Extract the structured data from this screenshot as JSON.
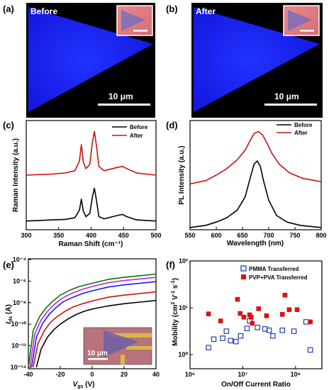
{
  "panels": {
    "a": {
      "letter": "(a)",
      "title": "Before",
      "scalebar": "10 μm"
    },
    "b": {
      "letter": "(b)",
      "title": "After",
      "scalebar": "10 μm"
    },
    "c": {
      "letter": "(c)",
      "xlabel": "Raman Shift (cm⁻¹)",
      "ylabel": "Raman Intensity (a.u.)"
    },
    "d": {
      "letter": "(d)",
      "xlabel": "Wavelength (nm)",
      "ylabel": "PL Intensity (a.u.)"
    },
    "e": {
      "letter": "(e)",
      "inset_scalebar": "10 μm"
    },
    "f": {
      "letter": "(f)",
      "xlabel": "On/Off Current Ratio"
    }
  },
  "colors": {
    "before": "#000000",
    "after": "#cc1111",
    "flake": "#1a24ff",
    "pmma": "#1f3fae",
    "pvp": "#dd1111"
  },
  "chart_data": [
    {
      "id": "c",
      "type": "line",
      "xlabel": "Raman Shift (cm⁻¹)",
      "ylabel": "Raman Intensity (a.u.)",
      "xlim": [
        300,
        500
      ],
      "xticks": [
        "300",
        "350",
        "400",
        "450",
        "500"
      ],
      "legend": "top-right",
      "series": [
        {
          "name": "Before",
          "x": [
            300,
            320,
            340,
            360,
            375,
            382,
            385,
            388,
            392,
            398,
            402,
            405,
            408,
            412,
            420,
            440,
            448,
            455,
            470,
            500
          ],
          "y": [
            0.08,
            0.085,
            0.09,
            0.095,
            0.11,
            0.18,
            0.28,
            0.17,
            0.12,
            0.15,
            0.3,
            0.38,
            0.28,
            0.12,
            0.1,
            0.13,
            0.14,
            0.12,
            0.09,
            0.08
          ]
        },
        {
          "name": "After",
          "x": [
            300,
            320,
            340,
            360,
            375,
            382,
            385,
            388,
            392,
            398,
            402,
            405,
            408,
            412,
            420,
            440,
            448,
            455,
            470,
            500
          ],
          "y": [
            0.5,
            0.505,
            0.51,
            0.52,
            0.54,
            0.63,
            0.78,
            0.62,
            0.56,
            0.6,
            0.8,
            0.9,
            0.78,
            0.58,
            0.54,
            0.57,
            0.58,
            0.56,
            0.52,
            0.5
          ]
        }
      ]
    },
    {
      "id": "d",
      "type": "line",
      "xlabel": "Wavelength (nm)",
      "ylabel": "PL Intensity (a.u.)",
      "xlim": [
        550,
        800
      ],
      "xticks": [
        "550",
        "600",
        "650",
        "700",
        "750",
        "800"
      ],
      "legend": "top-right",
      "series": [
        {
          "name": "Before",
          "x": [
            550,
            580,
            600,
            620,
            640,
            655,
            665,
            672,
            678,
            684,
            690,
            700,
            715,
            735,
            760,
            800
          ],
          "y": [
            0.02,
            0.04,
            0.07,
            0.11,
            0.18,
            0.3,
            0.48,
            0.6,
            0.63,
            0.58,
            0.45,
            0.27,
            0.13,
            0.07,
            0.04,
            0.02
          ]
        },
        {
          "name": "After",
          "x": [
            550,
            580,
            600,
            620,
            640,
            655,
            665,
            672,
            680,
            688,
            696,
            706,
            720,
            740,
            765,
            800
          ],
          "y": [
            0.42,
            0.45,
            0.5,
            0.56,
            0.64,
            0.73,
            0.82,
            0.88,
            0.9,
            0.87,
            0.8,
            0.7,
            0.6,
            0.52,
            0.47,
            0.44
          ]
        }
      ]
    },
    {
      "id": "e",
      "type": "line",
      "xlabel": "Vgs (V)",
      "ylabel": "Ids (A)",
      "xlim": [
        -40,
        40
      ],
      "xticks": [
        "-40",
        "-20",
        "0",
        "20",
        "40"
      ],
      "ylim_log": [
        -14,
        -4
      ],
      "yticks": [
        "10⁻¹⁴",
        "10⁻¹²",
        "10⁻¹⁰",
        "10⁻⁸",
        "10⁻⁶",
        "10⁻⁴"
      ],
      "series": [
        {
          "color": "#000000",
          "x": [
            -35,
            -32,
            -28,
            -24,
            -20,
            -15,
            -10,
            -5,
            0,
            10,
            20,
            30,
            40
          ],
          "log_y": [
            -14,
            -12.3,
            -11.2,
            -10.5,
            -10.0,
            -9.5,
            -9.1,
            -8.8,
            -8.6,
            -8.3,
            -8.1,
            -7.95,
            -7.8
          ]
        },
        {
          "color": "#cc1111",
          "x": [
            -37,
            -34,
            -30,
            -26,
            -22,
            -17,
            -12,
            -6,
            0,
            10,
            20,
            30,
            40
          ],
          "log_y": [
            -14,
            -11.8,
            -10.6,
            -9.8,
            -9.3,
            -8.8,
            -8.4,
            -8.1,
            -7.85,
            -7.5,
            -7.3,
            -7.15,
            -7.0
          ]
        },
        {
          "color": "#1a1aff",
          "x": [
            -38,
            -35,
            -31,
            -27,
            -23,
            -18,
            -12,
            -6,
            0,
            10,
            20,
            30,
            40
          ],
          "log_y": [
            -14,
            -11.2,
            -9.9,
            -9.1,
            -8.5,
            -7.9,
            -7.5,
            -7.15,
            -6.9,
            -6.55,
            -6.35,
            -6.2,
            -6.05
          ]
        },
        {
          "color": "#cc22cc",
          "x": [
            -39,
            -36,
            -32,
            -28,
            -24,
            -19,
            -13,
            -7,
            0,
            10,
            20,
            30,
            40
          ],
          "log_y": [
            -14,
            -10.9,
            -9.6,
            -8.8,
            -8.2,
            -7.6,
            -7.15,
            -6.8,
            -6.5,
            -6.15,
            -5.95,
            -5.8,
            -5.65
          ]
        },
        {
          "color": "#107010",
          "x": [
            -40,
            -37,
            -33,
            -29,
            -25,
            -20,
            -14,
            -8,
            0,
            10,
            20,
            30,
            40
          ],
          "log_y": [
            -14,
            -10.6,
            -9.3,
            -8.5,
            -7.9,
            -7.3,
            -6.85,
            -6.5,
            -6.2,
            -5.85,
            -5.65,
            -5.5,
            -5.35
          ]
        }
      ]
    },
    {
      "id": "f",
      "type": "scatter",
      "xlabel": "On/Off Current Ratio",
      "ylabel": "Mobility (cm² V⁻¹ s⁻¹)",
      "xlim_log": [
        6,
        8.5
      ],
      "ylim_log": [
        -0.3,
        2
      ],
      "xticks": [
        "10⁶",
        "10⁷",
        "10⁸"
      ],
      "yticks": [
        "10⁰",
        "10¹",
        "10²"
      ],
      "legend": "top-right",
      "series": [
        {
          "name": "PMMA Transferred",
          "marker": "open-square",
          "log_x": [
            6.35,
            6.45,
            6.62,
            6.69,
            6.77,
            6.87,
            6.96,
            7.08,
            7.13,
            7.28,
            7.42,
            7.5,
            7.57,
            7.75,
            7.97,
            8.2,
            8.28
          ],
          "log_y": [
            0.15,
            0.33,
            0.35,
            0.5,
            0.3,
            0.28,
            0.4,
            0.56,
            0.72,
            0.58,
            0.55,
            0.52,
            0.4,
            0.52,
            0.5,
            0.7,
            0.1
          ]
        },
        {
          "name": "PVP+PVA Transferred",
          "marker": "filled-square",
          "log_x": [
            6.35,
            6.58,
            6.9,
            6.95,
            7.02,
            7.13,
            7.16,
            7.18,
            7.3,
            7.45,
            7.75,
            7.8,
            7.88,
            8.03,
            8.28
          ],
          "log_y": [
            0.87,
            0.72,
            1.18,
            0.88,
            0.8,
            0.85,
            0.8,
            0.67,
            0.98,
            0.83,
            0.86,
            1.27,
            0.96,
            0.96,
            0.7
          ]
        }
      ]
    }
  ]
}
